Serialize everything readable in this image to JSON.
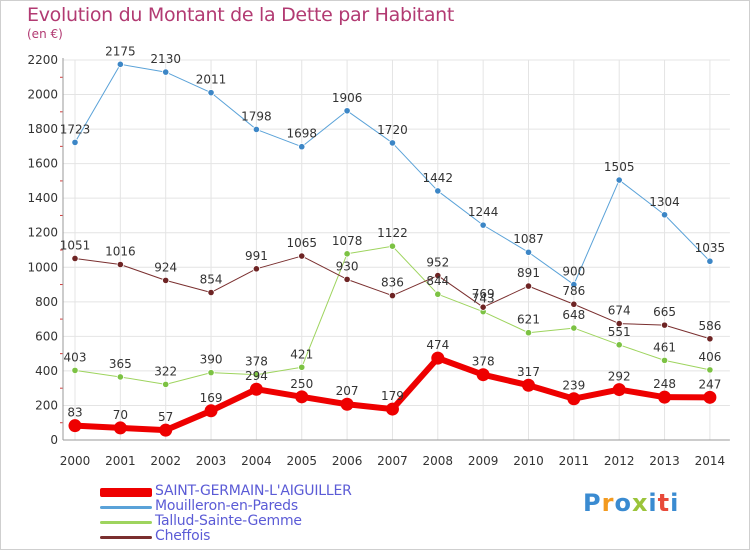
{
  "header": {
    "title": "Evolution du Montant de la Dette par Habitant",
    "unit": "(en €)"
  },
  "logo": {
    "text": "Proxiti",
    "colors": [
      "#3a8bd1",
      "#f39a1f",
      "#3a8bd1",
      "#9bc43a",
      "#3a8bd1",
      "#e84a3a",
      "#3a8bd1"
    ]
  },
  "chart_data": {
    "type": "line",
    "x": [
      "2000",
      "2001",
      "2002",
      "2003",
      "2004",
      "2005",
      "2006",
      "2007",
      "2008",
      "2009",
      "2010",
      "2011",
      "2012",
      "2013",
      "2014"
    ],
    "ylim": [
      0,
      2200
    ],
    "yticks": [
      0,
      200,
      400,
      600,
      800,
      1000,
      1200,
      1400,
      1600,
      1800,
      2000,
      2200
    ],
    "grid": true,
    "legend_position": "bottom-left",
    "series": [
      {
        "name": "Mouilleron-en-Pareds",
        "color": "#5aa2d8",
        "marker": "#3c86c6",
        "width": 1,
        "values": [
          1723,
          2175,
          2130,
          2011,
          1798,
          1698,
          1906,
          1720,
          1442,
          1244,
          1087,
          900,
          1505,
          1304,
          1035
        ],
        "labels": [
          "1723",
          "2175",
          "2130",
          "2011",
          "1798",
          "1698",
          "1906",
          "1720",
          "1442",
          "1244",
          "1087",
          "900",
          "1505",
          "1304",
          "1035"
        ]
      },
      {
        "name": "Tallud-Sainte-Gemme",
        "color": "#9ed45e",
        "marker": "#7cc243",
        "width": 1,
        "values": [
          403,
          365,
          322,
          390,
          378,
          421,
          1078,
          1122,
          844,
          743,
          621,
          648,
          551,
          461,
          406
        ],
        "labels": [
          "403",
          "365",
          "322",
          "390",
          "378",
          "421",
          "1078",
          "1122",
          "844",
          "743",
          "621",
          "648",
          "551",
          "461",
          "406"
        ]
      },
      {
        "name": "Cheffois",
        "color": "#7a2f2f",
        "marker": "#6e2424",
        "width": 1,
        "values": [
          1051,
          1016,
          924,
          854,
          991,
          1065,
          930,
          836,
          952,
          769,
          891,
          786,
          674,
          665,
          586
        ],
        "labels": [
          "1051",
          "1016",
          "924",
          "854",
          "991",
          "1065",
          "930",
          "836",
          "952",
          "769",
          "891",
          "786",
          "674",
          "665",
          "586"
        ]
      },
      {
        "name": "SAINT-GERMAIN-L'AIGUILLER",
        "color": "#ee0000",
        "marker": "#ee0000",
        "width": 6,
        "values": [
          83,
          70,
          57,
          169,
          294,
          250,
          207,
          179,
          474,
          378,
          317,
          239,
          292,
          248,
          247
        ],
        "labels": [
          "83",
          "70",
          "57",
          "169",
          "294",
          "250",
          "207",
          "179",
          "474",
          "378",
          "317",
          "239",
          "292",
          "248",
          "247"
        ]
      }
    ],
    "legend_order": [
      "SAINT-GERMAIN-L'AIGUILLER",
      "Mouilleron-en-Pareds",
      "Tallud-Sainte-Gemme",
      "Cheffois"
    ]
  }
}
